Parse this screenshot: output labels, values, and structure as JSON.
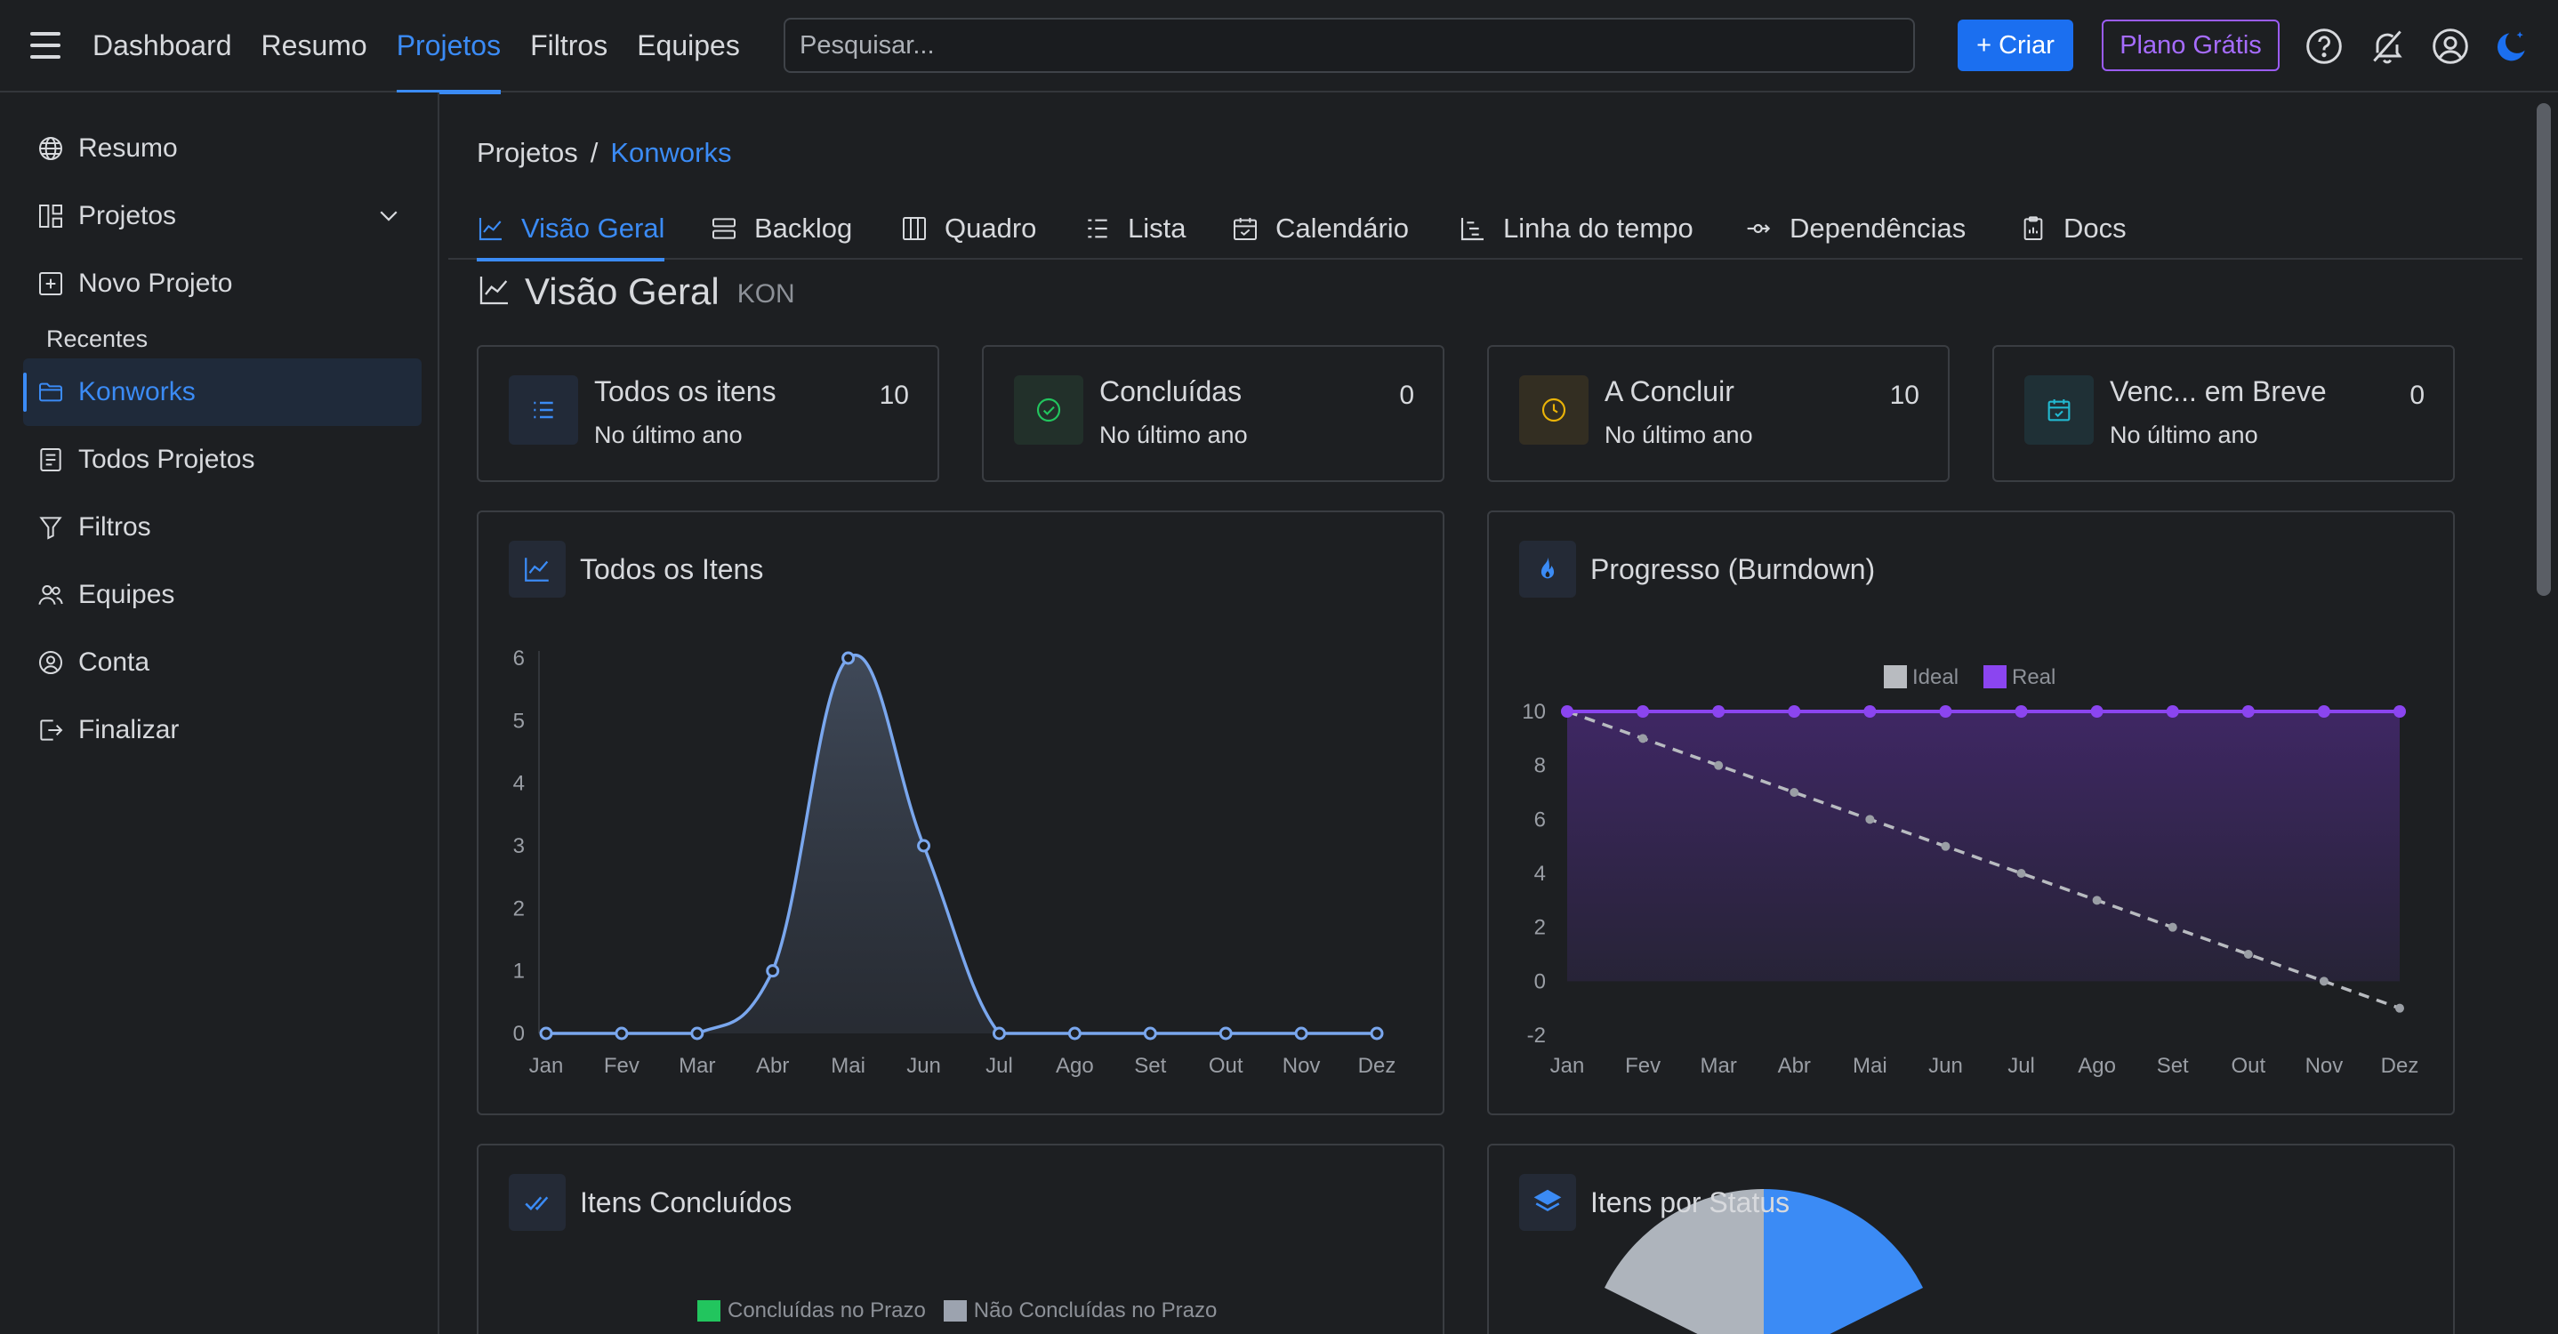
{
  "topbar": {
    "nav": [
      "Dashboard",
      "Resumo",
      "Projetos",
      "Filtros",
      "Equipes"
    ],
    "active_nav": "Projetos",
    "search_placeholder": "Pesquisar...",
    "create_label": "+ Criar",
    "plan_label": "Plano Grátis",
    "icons": [
      "help-icon",
      "notifications-off-icon",
      "account-icon",
      "theme-moon-icon"
    ]
  },
  "sidebar": {
    "items": [
      {
        "label": "Resumo",
        "icon": "globe-icon"
      },
      {
        "label": "Projetos",
        "icon": "projects-icon"
      },
      {
        "label": "Novo Projeto",
        "icon": "plus-square-icon"
      },
      {
        "label": "Konworks",
        "icon": "folder-icon"
      },
      {
        "label": "Todos Projetos",
        "icon": "list-box-icon"
      },
      {
        "label": "Filtros",
        "icon": "filter-icon"
      },
      {
        "label": "Equipes",
        "icon": "users-icon"
      },
      {
        "label": "Conta",
        "icon": "user-circle-icon"
      },
      {
        "label": "Finalizar",
        "icon": "logout-icon"
      }
    ],
    "recent_label": "Recentes"
  },
  "breadcrumb": {
    "root": "Projetos",
    "separator": "/",
    "current": "Konworks"
  },
  "tabs": [
    "Visão Geral",
    "Backlog",
    "Quadro",
    "Lista",
    "Calendário",
    "Linha do tempo",
    "Dependências",
    "Docs"
  ],
  "active_tab": "Visão Geral",
  "page": {
    "title": "Visão Geral",
    "code": "KON"
  },
  "stats": [
    {
      "label": "Todos os itens",
      "sub": "No último ano",
      "count": "10",
      "icon": "list-icon",
      "color": "#3b8bf5"
    },
    {
      "label": "Concluídas",
      "sub": "No último ano",
      "count": "0",
      "icon": "check-circle-icon",
      "color": "#22c55e"
    },
    {
      "label": "A Concluir",
      "sub": "No último ano",
      "count": "10",
      "icon": "clock-icon",
      "color": "#eab308"
    },
    {
      "label": "Venc... em Breve",
      "sub": "No último ano",
      "count": "0",
      "icon": "calendar-check-icon",
      "color": "#22b8cf"
    }
  ],
  "panels": {
    "all_items": "Todos os Itens",
    "burndown": "Progresso (Burndown)",
    "completed": "Itens Concluídos",
    "by_status": "Itens por Status"
  },
  "completed_legend": [
    "Concluídas no Prazo",
    "Não Concluídas no Prazo"
  ],
  "chart_data": [
    {
      "type": "area",
      "title": "Todos os Itens",
      "categories": [
        "Jan",
        "Fev",
        "Mar",
        "Abr",
        "Mai",
        "Jun",
        "Jul",
        "Ago",
        "Set",
        "Out",
        "Nov",
        "Dez"
      ],
      "values": [
        0,
        0,
        0,
        1,
        6,
        3,
        0,
        0,
        0,
        0,
        0,
        0
      ],
      "ylim": [
        0,
        6
      ],
      "yticks": [
        0,
        1,
        2,
        3,
        4,
        5,
        6
      ],
      "color": "#7aa7ee"
    },
    {
      "type": "line",
      "title": "Progresso (Burndown)",
      "categories": [
        "Jan",
        "Fev",
        "Mar",
        "Abr",
        "Mai",
        "Jun",
        "Jul",
        "Ago",
        "Set",
        "Out",
        "Nov",
        "Dez"
      ],
      "series": [
        {
          "name": "Ideal",
          "values": [
            10,
            9,
            8,
            7,
            6,
            5,
            4,
            3,
            2,
            1,
            0,
            -1
          ],
          "color": "#b8bbc0"
        },
        {
          "name": "Real",
          "values": [
            10,
            10,
            10,
            10,
            10,
            10,
            10,
            10,
            10,
            10,
            10,
            10
          ],
          "color": "#8b45f0"
        }
      ],
      "ylim": [
        -2,
        10
      ],
      "yticks": [
        -2,
        0,
        2,
        4,
        6,
        8,
        10
      ],
      "legend": "top-center"
    }
  ]
}
